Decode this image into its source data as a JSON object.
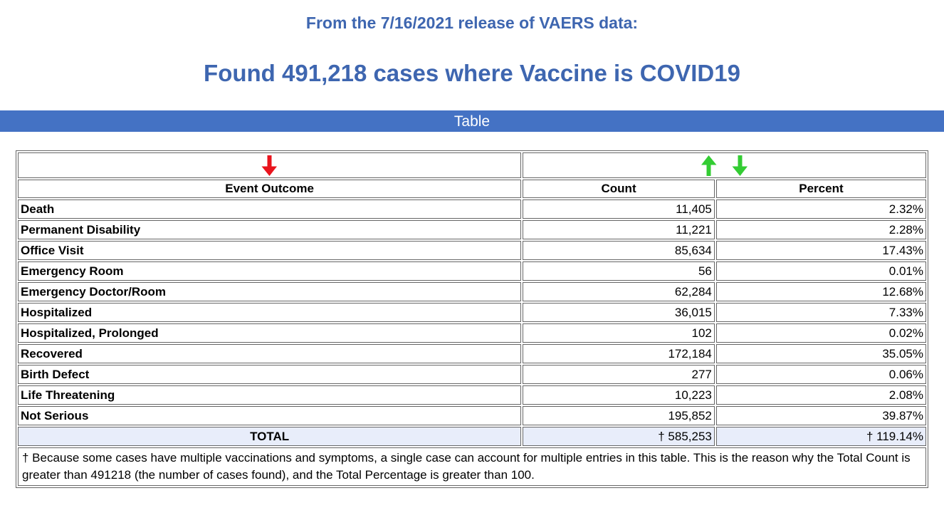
{
  "page": {
    "subtitle": "From the 7/16/2021 release of VAERS data:",
    "title": "Found 491,218 cases where Vaccine is COVID19",
    "banner_label": "Table"
  },
  "colors": {
    "heading_blue": "#3e66b0",
    "banner_blue": "#4472c4",
    "banner_text": "#ffffff",
    "total_row_bg": "#e8edfa",
    "arrow_red": "#e9141d",
    "arrow_green": "#33cc33",
    "border_gray": "#666666"
  },
  "icons": {
    "outcome_sort": "red-down-arrow-icon",
    "value_sort_asc": "green-up-arrow-icon",
    "value_sort_desc": "green-down-arrow-icon"
  },
  "table": {
    "columns": [
      "Event Outcome",
      "Count",
      "Percent"
    ],
    "rows": [
      {
        "outcome": "Death",
        "count": "11,405",
        "percent": "2.32%"
      },
      {
        "outcome": "Permanent Disability",
        "count": "11,221",
        "percent": "2.28%"
      },
      {
        "outcome": "Office Visit",
        "count": "85,634",
        "percent": "17.43%"
      },
      {
        "outcome": "Emergency Room",
        "count": "56",
        "percent": "0.01%"
      },
      {
        "outcome": "Emergency Doctor/Room",
        "count": "62,284",
        "percent": "12.68%"
      },
      {
        "outcome": "Hospitalized",
        "count": "36,015",
        "percent": "7.33%"
      },
      {
        "outcome": "Hospitalized, Prolonged",
        "count": "102",
        "percent": "0.02%"
      },
      {
        "outcome": "Recovered",
        "count": "172,184",
        "percent": "35.05%"
      },
      {
        "outcome": "Birth Defect",
        "count": "277",
        "percent": "0.06%"
      },
      {
        "outcome": "Life Threatening",
        "count": "10,223",
        "percent": "2.08%"
      },
      {
        "outcome": "Not Serious",
        "count": "195,852",
        "percent": "39.87%"
      }
    ],
    "total": {
      "label": "TOTAL",
      "count": "† 585,253",
      "percent": "† 119.14%"
    },
    "footnote": "† Because some cases have multiple vaccinations and symptoms, a single case can account for multiple entries in this table. This is the reason why the Total Count is greater than 491218 (the number of cases found), and the Total Percentage is greater than 100."
  }
}
